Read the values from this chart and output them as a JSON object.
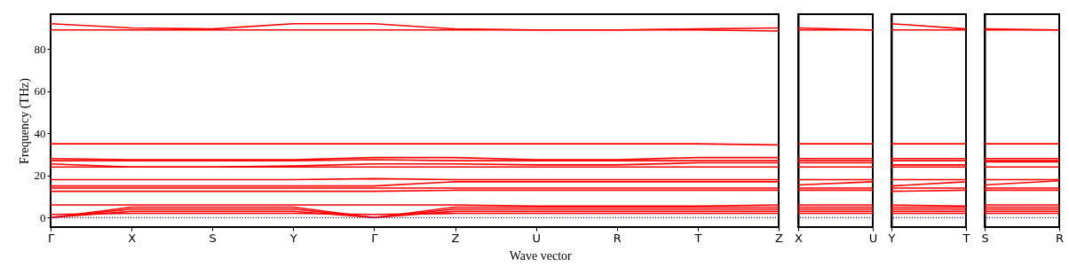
{
  "chart_data": [
    {
      "type": "line",
      "ylabel": "Frequency (THz)",
      "xlabel": "Wave vector",
      "categories": [
        "Γ",
        "X",
        "S",
        "Y",
        "Γ",
        "Z",
        "U",
        "R",
        "T",
        "Z"
      ],
      "ylim": [
        -4.5,
        96.5
      ],
      "yticks": [
        0,
        20,
        40,
        60,
        80
      ],
      "ref_lines": [
        {
          "axis": "y",
          "value": 0,
          "color": "#0000ff",
          "line_style": "dotted"
        }
      ],
      "series": [
        {
          "color": "#ff0000",
          "values": [
            0,
            3,
            3,
            3,
            0,
            3,
            3,
            3,
            3,
            3
          ]
        },
        {
          "color": "#ff0000",
          "values": [
            0,
            4,
            4,
            4,
            0,
            4,
            4,
            4,
            4,
            4
          ]
        },
        {
          "color": "#ff0000",
          "values": [
            0,
            5,
            5,
            5,
            0,
            5,
            5,
            5,
            5,
            5
          ]
        },
        {
          "color": "#ff0000",
          "values": [
            1.5,
            2,
            2,
            2,
            1.5,
            2,
            2,
            2,
            2,
            2
          ]
        },
        {
          "color": "#ff0000",
          "values": [
            6,
            6,
            6,
            6,
            6,
            6,
            5.5,
            5.5,
            5.5,
            6
          ]
        },
        {
          "color": "#ff0000",
          "values": [
            12.5,
            12.5,
            12.5,
            12.5,
            12.5,
            13,
            13,
            13,
            13,
            13
          ]
        },
        {
          "color": "#ff0000",
          "values": [
            14,
            14,
            14,
            14,
            14,
            14,
            14,
            14,
            14,
            14
          ]
        },
        {
          "color": "#ff0000",
          "values": [
            15,
            15,
            15,
            15,
            15,
            17,
            17,
            17,
            17,
            17
          ]
        },
        {
          "color": "#ff0000",
          "values": [
            18,
            18,
            18,
            18,
            18.5,
            18,
            18,
            18,
            18,
            18
          ]
        },
        {
          "color": "#ff0000",
          "values": [
            24,
            24,
            24,
            24,
            24,
            24,
            24,
            24,
            24,
            24
          ]
        },
        {
          "color": "#ff0000",
          "values": [
            25.5,
            24,
            24,
            24.5,
            25.5,
            25.5,
            25,
            25,
            26,
            26
          ]
        },
        {
          "color": "#ff0000",
          "values": [
            27,
            27,
            27,
            27,
            27.5,
            27,
            27,
            27,
            27,
            27
          ]
        },
        {
          "color": "#ff0000",
          "values": [
            28,
            27.5,
            27.5,
            27.5,
            28.5,
            28.5,
            27.5,
            27.5,
            28.5,
            28.5
          ]
        },
        {
          "color": "#ff0000",
          "values": [
            35,
            35,
            35,
            35,
            35,
            35,
            35,
            35,
            35,
            34.5
          ]
        },
        {
          "color": "#ff0000",
          "values": [
            89,
            89,
            89,
            89,
            89,
            89,
            89,
            89,
            89,
            88.5
          ]
        },
        {
          "color": "#ff0000",
          "values": [
            92,
            90,
            89.5,
            92,
            92,
            89.5,
            89,
            89,
            89.5,
            90
          ]
        }
      ]
    },
    {
      "type": "line",
      "categories": [
        "X",
        "U"
      ],
      "ylim": [
        -4.5,
        96.5
      ],
      "tick_labels": "x",
      "ref_lines": [
        {
          "axis": "y",
          "value": 0,
          "color": "#0000ff",
          "line_style": "dotted"
        }
      ],
      "series": [
        {
          "color": "#ff0000",
          "values": [
            3,
            3
          ]
        },
        {
          "color": "#ff0000",
          "values": [
            4,
            4
          ]
        },
        {
          "color": "#ff0000",
          "values": [
            5,
            5
          ]
        },
        {
          "color": "#ff0000",
          "values": [
            2,
            2
          ]
        },
        {
          "color": "#ff0000",
          "values": [
            6,
            6
          ]
        },
        {
          "color": "#ff0000",
          "values": [
            13,
            13
          ]
        },
        {
          "color": "#ff0000",
          "values": [
            14,
            14
          ]
        },
        {
          "color": "#ff0000",
          "values": [
            15.5,
            17
          ]
        },
        {
          "color": "#ff0000",
          "values": [
            18,
            18
          ]
        },
        {
          "color": "#ff0000",
          "values": [
            24,
            24
          ]
        },
        {
          "color": "#ff0000",
          "values": [
            26,
            26
          ]
        },
        {
          "color": "#ff0000",
          "values": [
            27,
            27
          ]
        },
        {
          "color": "#ff0000",
          "values": [
            28,
            28
          ]
        },
        {
          "color": "#ff0000",
          "values": [
            35,
            35
          ]
        },
        {
          "color": "#ff0000",
          "values": [
            89,
            89
          ]
        },
        {
          "color": "#ff0000",
          "values": [
            90,
            89
          ]
        }
      ]
    },
    {
      "type": "line",
      "categories": [
        "Y",
        "T"
      ],
      "ylim": [
        -4.5,
        96.5
      ],
      "tick_labels": "x",
      "ref_lines": [
        {
          "axis": "y",
          "value": 0,
          "color": "#0000ff",
          "line_style": "dotted"
        }
      ],
      "series": [
        {
          "color": "#ff0000",
          "values": [
            3,
            3
          ]
        },
        {
          "color": "#ff0000",
          "values": [
            4,
            4
          ]
        },
        {
          "color": "#ff0000",
          "values": [
            5,
            5
          ]
        },
        {
          "color": "#ff0000",
          "values": [
            2,
            2
          ]
        },
        {
          "color": "#ff0000",
          "values": [
            6,
            5.5
          ]
        },
        {
          "color": "#ff0000",
          "values": [
            12.5,
            13
          ]
        },
        {
          "color": "#ff0000",
          "values": [
            14,
            14
          ]
        },
        {
          "color": "#ff0000",
          "values": [
            15,
            17
          ]
        },
        {
          "color": "#ff0000",
          "values": [
            18,
            18
          ]
        },
        {
          "color": "#ff0000",
          "values": [
            24,
            24
          ]
        },
        {
          "color": "#ff0000",
          "values": [
            25,
            25
          ]
        },
        {
          "color": "#ff0000",
          "values": [
            27,
            27
          ]
        },
        {
          "color": "#ff0000",
          "values": [
            28,
            28
          ]
        },
        {
          "color": "#ff0000",
          "values": [
            35,
            35
          ]
        },
        {
          "color": "#ff0000",
          "values": [
            89,
            89
          ]
        },
        {
          "color": "#ff0000",
          "values": [
            92,
            89.5
          ]
        }
      ]
    },
    {
      "type": "line",
      "categories": [
        "S",
        "R"
      ],
      "ylim": [
        -4.5,
        96.5
      ],
      "tick_labels": "x",
      "ref_lines": [
        {
          "axis": "y",
          "value": 0,
          "color": "#0000ff",
          "line_style": "dotted"
        }
      ],
      "series": [
        {
          "color": "#ff0000",
          "values": [
            3,
            3
          ]
        },
        {
          "color": "#ff0000",
          "values": [
            4,
            4
          ]
        },
        {
          "color": "#ff0000",
          "values": [
            5,
            5
          ]
        },
        {
          "color": "#ff0000",
          "values": [
            2,
            2
          ]
        },
        {
          "color": "#ff0000",
          "values": [
            6,
            6
          ]
        },
        {
          "color": "#ff0000",
          "values": [
            13,
            13
          ]
        },
        {
          "color": "#ff0000",
          "values": [
            14,
            14
          ]
        },
        {
          "color": "#ff0000",
          "values": [
            15.5,
            17.5
          ]
        },
        {
          "color": "#ff0000",
          "values": [
            18,
            18
          ]
        },
        {
          "color": "#ff0000",
          "values": [
            24,
            24
          ]
        },
        {
          "color": "#ff0000",
          "values": [
            26.5,
            26.5
          ]
        },
        {
          "color": "#ff0000",
          "values": [
            27,
            27
          ]
        },
        {
          "color": "#ff0000",
          "values": [
            28,
            28
          ]
        },
        {
          "color": "#ff0000",
          "values": [
            35,
            35
          ]
        },
        {
          "color": "#ff0000",
          "values": [
            89,
            89
          ]
        },
        {
          "color": "#ff0000",
          "values": [
            89.5,
            89
          ]
        }
      ]
    }
  ]
}
